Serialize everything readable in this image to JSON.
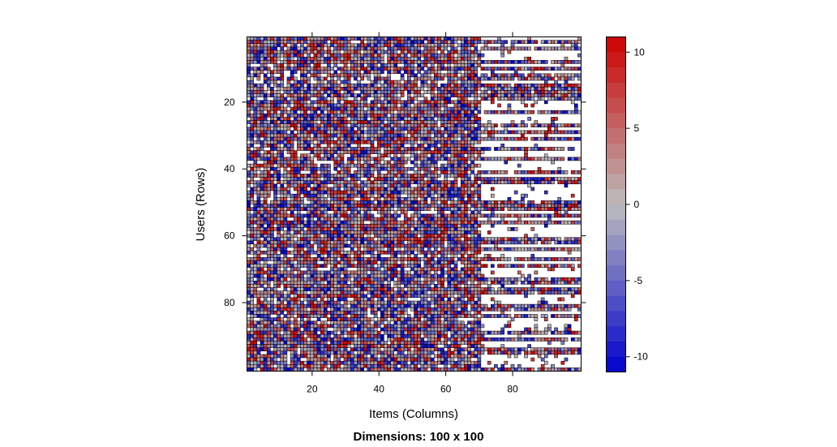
{
  "chart_data": {
    "type": "heatmap",
    "title": "Dimensions: 100 x 100",
    "xlabel": "Items (Columns)",
    "ylabel": "Users (Rows)",
    "rows": 100,
    "cols": 100,
    "x_ticks": [
      20,
      40,
      60,
      80
    ],
    "y_ticks": [
      20,
      40,
      60,
      80
    ],
    "value_range": [
      -11,
      11
    ],
    "colorbar": {
      "ticks": [
        10,
        5,
        0,
        -5,
        -10
      ],
      "levels": 22,
      "low_color": "#0000cc",
      "mid_color": "#bdbdbd",
      "high_color": "#cc0000"
    },
    "missing_color": "#ffffff",
    "cell_border_color": "#000000",
    "column_blocks": [
      {
        "from_col": 1,
        "to_col": 70,
        "approx_missing_fraction": 0.08,
        "value_distribution": "uniform -11..11"
      },
      {
        "from_col": 71,
        "to_col": 100,
        "approx_missing_fraction": 0.55,
        "value_distribution": "uniform -11..11"
      }
    ]
  }
}
